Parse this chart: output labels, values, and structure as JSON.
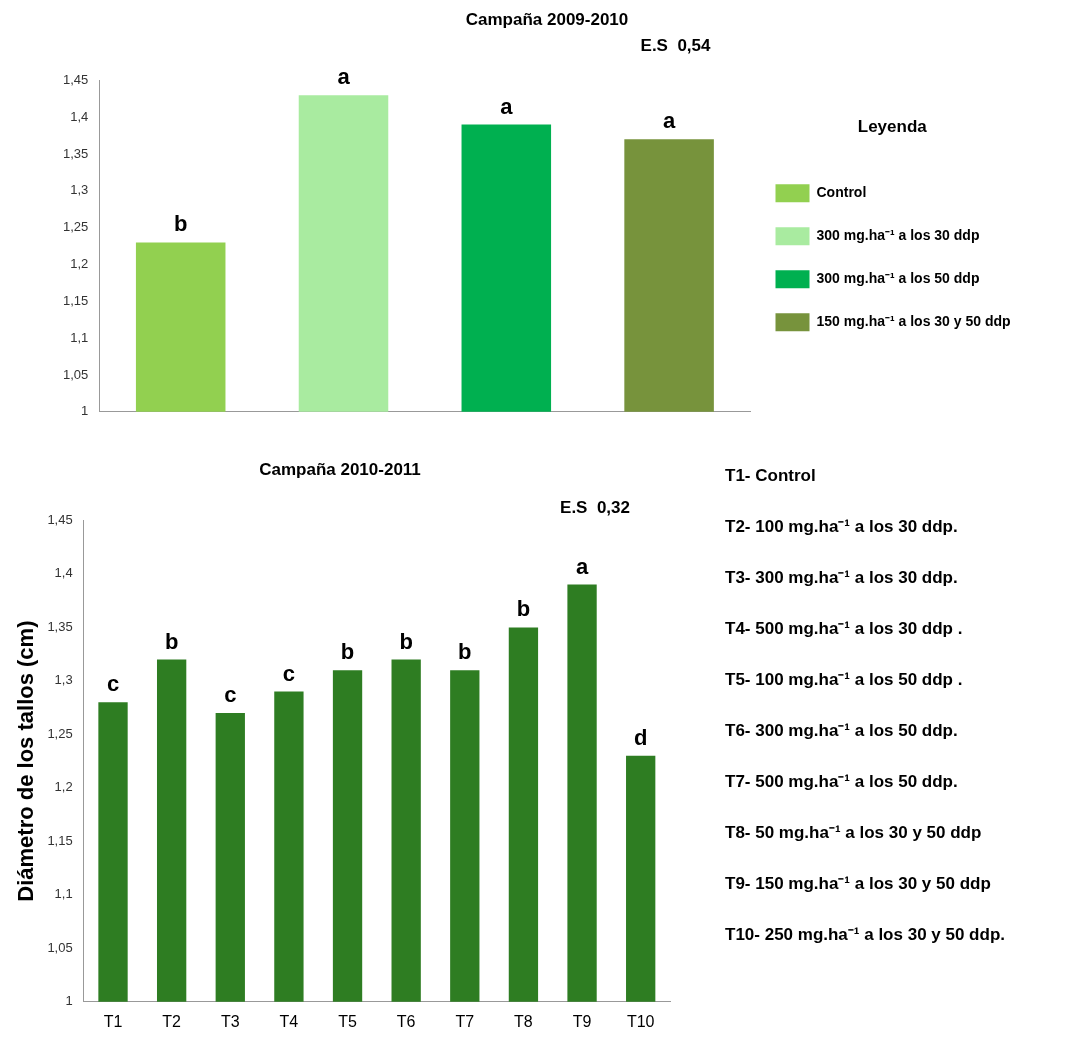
{
  "chart_data": [
    {
      "type": "bar",
      "title": "Campaña 2009-2010",
      "legend_title": "Leyenda",
      "legend": "right",
      "categories": [
        null,
        null,
        null,
        null
      ],
      "series": [
        {
          "name": "Control",
          "color": "#92d050",
          "values": [
            1.23,
            null,
            null,
            null
          ],
          "value_labels": [
            "b",
            null,
            null,
            null
          ]
        },
        {
          "name": "300 mg.ha⁻¹ a los 30 ddp",
          "color": "#a9eba0",
          "values": [
            null,
            1.43,
            null,
            null
          ],
          "value_labels": [
            null,
            "a",
            null,
            null
          ]
        },
        {
          "name": "300 mg.ha⁻¹ a los 50 ddp",
          "color": "#00b050",
          "values": [
            null,
            null,
            1.39,
            null
          ],
          "value_labels": [
            null,
            null,
            "a",
            null
          ]
        },
        {
          "name": "150 mg.ha⁻¹ a los 30 y 50 ddp",
          "color": "#77933c",
          "values": [
            null,
            null,
            null,
            1.37
          ],
          "value_labels": [
            null,
            null,
            null,
            "a"
          ]
        }
      ],
      "ylim": [
        1,
        1.45
      ],
      "yticks": [
        {
          "value": 1,
          "label": "1"
        },
        {
          "value": 1.05,
          "label": "1,05"
        },
        {
          "value": 1.1,
          "label": "1,1"
        },
        {
          "value": 1.15,
          "label": "1,15"
        },
        {
          "value": 1.2,
          "label": "1,2"
        },
        {
          "value": 1.25,
          "label": "1,25"
        },
        {
          "value": 1.3,
          "label": "1,3"
        },
        {
          "value": 1.35,
          "label": "1,35"
        },
        {
          "value": 1.4,
          "label": "1,4"
        },
        {
          "value": 1.45,
          "label": "1,45"
        }
      ],
      "annotations": [
        "E.S  0,54"
      ]
    },
    {
      "type": "bar",
      "title": "Campaña 2010-2011",
      "ylabel": "Diámetro de los tallos (cm)",
      "legend": false,
      "categories": [
        "T1",
        "T2",
        "T3",
        "T4",
        "T5",
        "T6",
        "T7",
        "T8",
        "T9",
        "T10"
      ],
      "values": [
        1.28,
        1.32,
        1.27,
        1.29,
        1.31,
        1.32,
        1.31,
        1.35,
        1.39,
        1.23
      ],
      "color": "#2e7d22",
      "value_labels": [
        "c",
        "b",
        "c",
        "c",
        "b",
        "b",
        "b",
        "b",
        "a",
        "d"
      ],
      "ylim": [
        1,
        1.45
      ],
      "yticks": [
        {
          "value": 1,
          "label": "1"
        },
        {
          "value": 1.05,
          "label": "1,05"
        },
        {
          "value": 1.1,
          "label": "1,1"
        },
        {
          "value": 1.15,
          "label": "1,15"
        },
        {
          "value": 1.2,
          "label": "1,2"
        },
        {
          "value": 1.25,
          "label": "1,25"
        },
        {
          "value": 1.3,
          "label": "1,3"
        },
        {
          "value": 1.35,
          "label": "1,35"
        },
        {
          "value": 1.4,
          "label": "1,4"
        },
        {
          "value": 1.45,
          "label": "1,45"
        }
      ],
      "annotations": [
        "E.S  0,32",
        "T1- Control",
        "T2- 100 mg.ha⁻¹ a los 30 ddp.",
        "T3- 300 mg.ha⁻¹ a los 30 ddp.",
        "T4- 500 mg.ha⁻¹ a los 30 ddp .",
        "T5- 100 mg.ha⁻¹ a los 50 ddp .",
        "T6- 300 mg.ha⁻¹ a los 50 ddp.",
        "T7- 500 mg.ha⁻¹ a los 50 ddp.",
        "T8- 50 mg.ha⁻¹ a los 30 y 50 ddp",
        "T9- 150 mg.ha⁻¹ a los 30 y 50 ddp",
        "T10- 250 mg.ha⁻¹ a los 30 y 50 ddp."
      ]
    }
  ]
}
